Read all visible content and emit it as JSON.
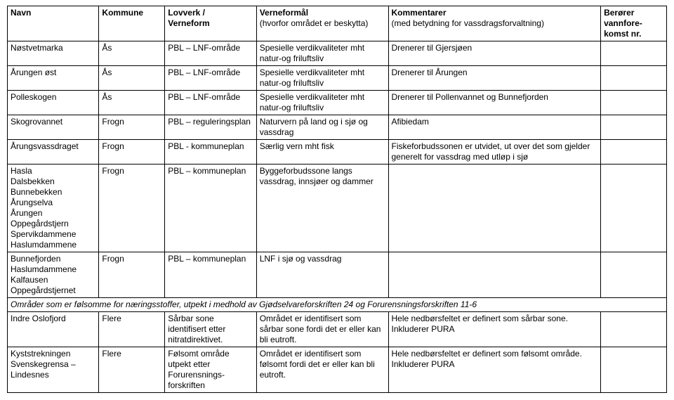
{
  "columns": {
    "navn": "Navn",
    "kommune": "Kommune",
    "lovverk_main": "Lovverk /",
    "lovverk_sub": "Verneform",
    "formaal_main": "Verneformål",
    "formaal_sub": "(hvorfor området er beskytta)",
    "kommentar_main": "Kommentarer",
    "kommentar_sub": "(med betydning for vassdragsforvaltning)",
    "berorer_l1": "Berører",
    "berorer_l2": "vannfore-",
    "berorer_l3": "komst nr."
  },
  "rows": [
    {
      "navn": "Nøstvetmarka",
      "kommune": "Ås",
      "lovverk": "PBL – LNF-område",
      "formaal": "Spesielle verdikvaliteter mht natur-og friluftsliv",
      "kommentar": "Drenerer til Gjersjøen",
      "berorer": ""
    },
    {
      "navn": "Årungen øst",
      "kommune": "Ås",
      "lovverk": "PBL – LNF-område",
      "formaal": "Spesielle verdikvaliteter mht natur-og friluftsliv",
      "kommentar": "Drenerer til Årungen",
      "berorer": ""
    },
    {
      "navn": "Polleskogen",
      "kommune": "Ås",
      "lovverk": "PBL – LNF-område",
      "formaal": "Spesielle verdikvaliteter mht natur-og friluftsliv",
      "kommentar": "Drenerer til Pollenvannet og Bunnefjorden",
      "berorer": ""
    },
    {
      "navn": "Skogrovannet",
      "kommune": "Frogn",
      "lovverk": "PBL – reguleringsplan",
      "formaal": "Naturvern på land og i sjø og vassdrag",
      "kommentar": "Afibiedam",
      "berorer": ""
    },
    {
      "navn": "Årungsvassdraget",
      "kommune": "Frogn",
      "lovverk": "PBL - kommuneplan",
      "formaal": "Særlig vern mht fisk",
      "kommentar": "Fiskeforbudssonen er utvidet, ut over det som gjelder generelt for vassdrag med utløp i sjø",
      "berorer": ""
    },
    {
      "navn": "Hasla\nDalsbekken\nBunnebekken\nÅrungselva\nÅrungen\nOppegårdstjern\nSpervikdammene\nHaslumdammene",
      "kommune": "Frogn",
      "lovverk": "PBL – kommuneplan",
      "formaal": "Byggeforbudssone langs vassdrag, innsjøer og dammer",
      "kommentar": "",
      "berorer": ""
    },
    {
      "navn": "Bunnefjorden\nHaslumdammene\nKalfausen\nOppegårdstjernet",
      "kommune": "Frogn",
      "lovverk": "PBL – kommuneplan",
      "formaal": "LNF i sjø og vassdrag",
      "kommentar": "",
      "berorer": ""
    }
  ],
  "section_title": "Områder som er følsomme for næringsstoffer, utpekt i medhold av Gjødselvareforskriften 24 og Forurensningsforskriften 11-6",
  "rows2": [
    {
      "navn": "Indre Oslofjord",
      "kommune": "Flere",
      "lovverk": "Sårbar sone identifisert etter nitratdirektivet.",
      "formaal": "Området er identifisert som sårbar sone fordi det er eller kan bli eutroft.",
      "kommentar": "Hele nedbørsfeltet er definert som sårbar sone. Inkluderer PURA",
      "berorer": ""
    },
    {
      "navn": "Kyststrekningen Svenskegrensa – Lindesnes",
      "kommune": "Flere",
      "lovverk": "Følsomt område utpekt etter Forurensnings-forskriften",
      "formaal": "Området er identifisert som følsomt fordi det er eller kan bli eutroft.",
      "kommentar": "Hele nedbørsfeltet er definert som følsomt område. Inkluderer PURA",
      "berorer": ""
    }
  ]
}
